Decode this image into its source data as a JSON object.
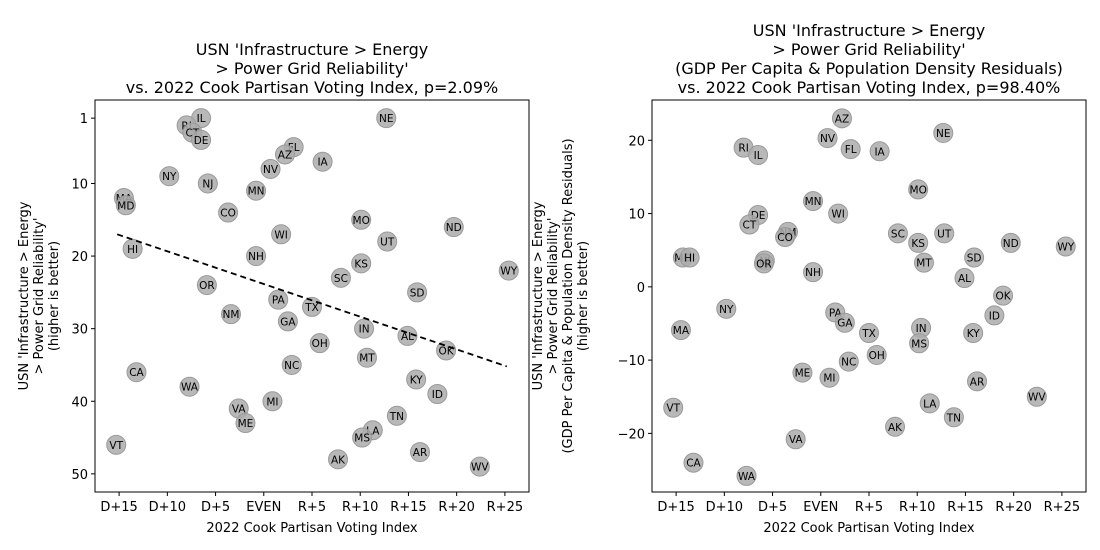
{
  "chart_data": [
    {
      "type": "scatter",
      "title": [
        "USN 'Infrastructure > Energy",
        "> Power Grid Reliability'",
        "vs. 2022 Cook Partisan Voting Index, p=2.09%"
      ],
      "xlabel": "2022 Cook Partisan Voting Index",
      "ylabel": [
        "USN 'Infrastructure > Energy",
        "> Power Grid Reliability'",
        "(higher is better)"
      ],
      "xlim": [
        -17.5,
        27.5
      ],
      "ylim": [
        52.5,
        -1.5
      ],
      "y_inverted": true,
      "x_ticks": [
        -15,
        -10,
        -5,
        0,
        5,
        10,
        15,
        20,
        25
      ],
      "x_tick_labels": [
        "D+15",
        "D+10",
        "D+5",
        "EVEN",
        "R+5",
        "R+10",
        "R+15",
        "R+20",
        "R+25"
      ],
      "y_ticks": [
        1,
        10,
        20,
        30,
        40,
        50
      ],
      "y_tick_labels": [
        "1",
        "10",
        "20",
        "30",
        "40",
        "50"
      ],
      "trendline": {
        "x": [
          -15.2,
          25.2
        ],
        "y": [
          17.0,
          35.2
        ],
        "style": "dashed"
      },
      "points": [
        {
          "label": "IL",
          "x": -6.5,
          "y": 1
        },
        {
          "label": "NE",
          "x": 12.7,
          "y": 1
        },
        {
          "label": "RI",
          "x": -8.0,
          "y": 2
        },
        {
          "label": "CT",
          "x": -7.4,
          "y": 3
        },
        {
          "label": "DE",
          "x": -6.5,
          "y": 4
        },
        {
          "label": "FL",
          "x": 3.1,
          "y": 5
        },
        {
          "label": "AZ",
          "x": 2.2,
          "y": 6
        },
        {
          "label": "IA",
          "x": 6.1,
          "y": 7
        },
        {
          "label": "NV",
          "x": 0.7,
          "y": 8
        },
        {
          "label": "NY",
          "x": -9.8,
          "y": 9
        },
        {
          "label": "NJ",
          "x": -5.8,
          "y": 10
        },
        {
          "label": "MN",
          "x": -0.8,
          "y": 11
        },
        {
          "label": "MA",
          "x": -14.5,
          "y": 12
        },
        {
          "label": "MD",
          "x": -14.3,
          "y": 13
        },
        {
          "label": "CO",
          "x": -3.7,
          "y": 14
        },
        {
          "label": "MO",
          "x": 10.1,
          "y": 15
        },
        {
          "label": "ND",
          "x": 19.7,
          "y": 16
        },
        {
          "label": "WI",
          "x": 1.8,
          "y": 17
        },
        {
          "label": "UT",
          "x": 12.8,
          "y": 18
        },
        {
          "label": "HI",
          "x": -13.6,
          "y": 19
        },
        {
          "label": "NH",
          "x": -0.8,
          "y": 20
        },
        {
          "label": "KS",
          "x": 10.1,
          "y": 21
        },
        {
          "label": "WY",
          "x": 25.4,
          "y": 22
        },
        {
          "label": "SC",
          "x": 8.0,
          "y": 23
        },
        {
          "label": "OR",
          "x": -5.9,
          "y": 24
        },
        {
          "label": "SD",
          "x": 15.9,
          "y": 25
        },
        {
          "label": "PA",
          "x": 1.5,
          "y": 26
        },
        {
          "label": "TX",
          "x": 5.0,
          "y": 27
        },
        {
          "label": "NM",
          "x": -3.4,
          "y": 28
        },
        {
          "label": "GA",
          "x": 2.5,
          "y": 29
        },
        {
          "label": "IN",
          "x": 10.4,
          "y": 30
        },
        {
          "label": "AL",
          "x": 14.9,
          "y": 31
        },
        {
          "label": "OH",
          "x": 5.8,
          "y": 32
        },
        {
          "label": "OK",
          "x": 18.9,
          "y": 33
        },
        {
          "label": "MT",
          "x": 10.7,
          "y": 34
        },
        {
          "label": "NC",
          "x": 2.9,
          "y": 35
        },
        {
          "label": "CA",
          "x": -13.2,
          "y": 36
        },
        {
          "label": "KY",
          "x": 15.8,
          "y": 37
        },
        {
          "label": "WA",
          "x": -7.7,
          "y": 38
        },
        {
          "label": "ID",
          "x": 18.0,
          "y": 39
        },
        {
          "label": "MI",
          "x": 0.9,
          "y": 40
        },
        {
          "label": "VA",
          "x": -2.6,
          "y": 41
        },
        {
          "label": "TN",
          "x": 13.8,
          "y": 42
        },
        {
          "label": "ME",
          "x": -1.9,
          "y": 43
        },
        {
          "label": "LA",
          "x": 11.3,
          "y": 44
        },
        {
          "label": "MS",
          "x": 10.2,
          "y": 45
        },
        {
          "label": "VT",
          "x": -15.3,
          "y": 46
        },
        {
          "label": "AR",
          "x": 16.2,
          "y": 47
        },
        {
          "label": "AK",
          "x": 7.7,
          "y": 48
        },
        {
          "label": "WV",
          "x": 22.4,
          "y": 49
        }
      ]
    },
    {
      "type": "scatter",
      "title": [
        "USN 'Infrastructure > Energy",
        "> Power Grid Reliability'",
        "(GDP Per Capita & Population Density Residuals)",
        "vs. 2022 Cook Partisan Voting Index, p=98.40%"
      ],
      "xlabel": "2022 Cook Partisan Voting Index",
      "ylabel": [
        "USN 'Infrastructure > Energy",
        "> Power Grid Reliability'",
        "(GDP Per Capita & Population Density Residuals)",
        "(higher is better)"
      ],
      "xlim": [
        -17.5,
        27.5
      ],
      "ylim": [
        -28.0,
        25.5
      ],
      "x_ticks": [
        -15,
        -10,
        -5,
        0,
        5,
        10,
        15,
        20,
        25
      ],
      "x_tick_labels": [
        "D+15",
        "D+10",
        "D+5",
        "EVEN",
        "R+5",
        "R+10",
        "R+15",
        "R+20",
        "R+25"
      ],
      "y_ticks": [
        -20,
        -10,
        0,
        10,
        20
      ],
      "y_tick_labels": [
        "−20",
        "−10",
        "0",
        "10",
        "20"
      ],
      "points": [
        {
          "label": "AZ",
          "x": 2.2,
          "y": 23.0
        },
        {
          "label": "NE",
          "x": 12.7,
          "y": 21.0
        },
        {
          "label": "NV",
          "x": 0.7,
          "y": 20.3
        },
        {
          "label": "RI",
          "x": -8.0,
          "y": 19.0
        },
        {
          "label": "FL",
          "x": 3.1,
          "y": 18.8
        },
        {
          "label": "IA",
          "x": 6.1,
          "y": 18.5
        },
        {
          "label": "IL",
          "x": -6.5,
          "y": 18.0
        },
        {
          "label": "MO",
          "x": 10.1,
          "y": 13.3
        },
        {
          "label": "MN",
          "x": -0.8,
          "y": 11.7
        },
        {
          "label": "WI",
          "x": 1.8,
          "y": 10.0
        },
        {
          "label": "DE",
          "x": -6.5,
          "y": 9.8
        },
        {
          "label": "CT",
          "x": -7.4,
          "y": 8.5
        },
        {
          "label": "NM",
          "x": -3.4,
          "y": 7.5
        },
        {
          "label": "SC",
          "x": 8.0,
          "y": 7.3
        },
        {
          "label": "UT",
          "x": 12.8,
          "y": 7.3
        },
        {
          "label": "CO",
          "x": -3.7,
          "y": 6.8
        },
        {
          "label": "KS",
          "x": 10.1,
          "y": 6.0
        },
        {
          "label": "ND",
          "x": 19.7,
          "y": 6.0
        },
        {
          "label": "WY",
          "x": 25.4,
          "y": 5.5
        },
        {
          "label": "SD",
          "x": 15.9,
          "y": 4.0
        },
        {
          "label": "MD",
          "x": -14.3,
          "y": 4.0
        },
        {
          "label": "HI",
          "x": -13.6,
          "y": 4.0
        },
        {
          "label": "NJ",
          "x": -5.8,
          "y": 3.6
        },
        {
          "label": "MT",
          "x": 10.7,
          "y": 3.3
        },
        {
          "label": "OR",
          "x": -5.9,
          "y": 3.2
        },
        {
          "label": "NH",
          "x": -0.8,
          "y": 2.0
        },
        {
          "label": "AL",
          "x": 14.9,
          "y": 1.2
        },
        {
          "label": "OK",
          "x": 18.9,
          "y": -1.2
        },
        {
          "label": "NY",
          "x": -9.8,
          "y": -3.0
        },
        {
          "label": "PA",
          "x": 1.5,
          "y": -3.5
        },
        {
          "label": "ID",
          "x": 18.0,
          "y": -3.9
        },
        {
          "label": "GA",
          "x": 2.5,
          "y": -4.9
        },
        {
          "label": "IN",
          "x": 10.4,
          "y": -5.6
        },
        {
          "label": "MA",
          "x": -14.5,
          "y": -5.9
        },
        {
          "label": "TX",
          "x": 5.0,
          "y": -6.3
        },
        {
          "label": "KY",
          "x": 15.8,
          "y": -6.3
        },
        {
          "label": "MS",
          "x": 10.2,
          "y": -7.7
        },
        {
          "label": "OH",
          "x": 5.8,
          "y": -9.3
        },
        {
          "label": "NC",
          "x": 2.9,
          "y": -10.2
        },
        {
          "label": "ME",
          "x": -1.9,
          "y": -11.7
        },
        {
          "label": "MI",
          "x": 0.9,
          "y": -12.4
        },
        {
          "label": "AR",
          "x": 16.2,
          "y": -12.9
        },
        {
          "label": "WV",
          "x": 22.4,
          "y": -15.0
        },
        {
          "label": "LA",
          "x": 11.3,
          "y": -15.9
        },
        {
          "label": "VT",
          "x": -15.3,
          "y": -16.5
        },
        {
          "label": "TN",
          "x": 13.8,
          "y": -17.8
        },
        {
          "label": "AK",
          "x": 7.7,
          "y": -19.1
        },
        {
          "label": "VA",
          "x": -2.6,
          "y": -20.8
        },
        {
          "label": "CA",
          "x": -13.2,
          "y": -24.0
        },
        {
          "label": "WA",
          "x": -7.7,
          "y": -25.8
        }
      ]
    }
  ]
}
